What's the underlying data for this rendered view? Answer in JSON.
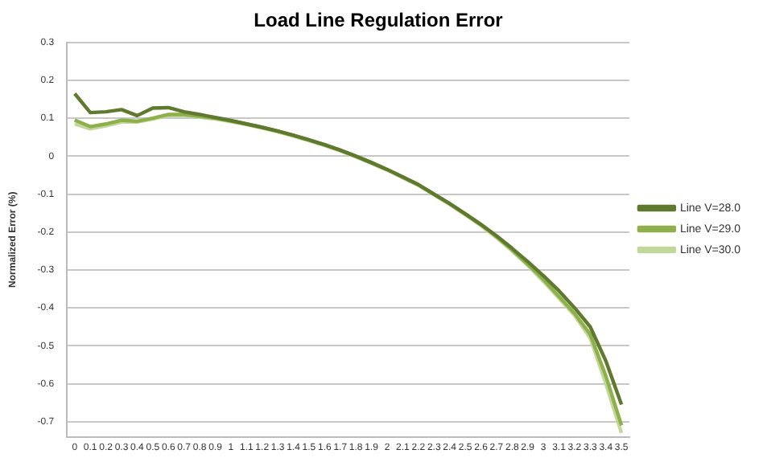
{
  "chart_data": {
    "type": "line",
    "title": "Load Line Regulation Error",
    "ylabel": "Normalized Error (%)",
    "categories": [
      "0",
      "0.1",
      "0.2",
      "0.3",
      "0.4",
      "0.5",
      "0.6",
      "0.7",
      "0.8",
      "0.9",
      "1",
      "1.1",
      "1.2",
      "1.3",
      "1.4",
      "1.5",
      "1.6",
      "1.7",
      "1.8",
      "1.9",
      "2",
      "2.1",
      "2.2",
      "2.3",
      "2.4",
      "2.5",
      "2.6",
      "2.7",
      "2.8",
      "2.9",
      "3",
      "3.1",
      "3.2",
      "3.3",
      "3.4",
      "3.5"
    ],
    "series": [
      {
        "name": "Line V=28.0",
        "color": "#5f7a2e",
        "values": [
          0.165,
          0.115,
          0.117,
          0.123,
          0.107,
          0.127,
          0.128,
          0.117,
          0.11,
          0.102,
          0.094,
          0.085,
          0.076,
          0.066,
          0.055,
          0.043,
          0.03,
          0.016,
          0.0,
          -0.017,
          -0.035,
          -0.055,
          -0.075,
          -0.1,
          -0.125,
          -0.152,
          -0.18,
          -0.21,
          -0.243,
          -0.278,
          -0.315,
          -0.355,
          -0.4,
          -0.45,
          -0.54,
          -0.655
        ]
      },
      {
        "name": "Line V=29.0",
        "color": "#8db04a",
        "values": [
          0.095,
          0.078,
          0.085,
          0.095,
          0.092,
          0.1,
          0.11,
          0.11,
          0.105,
          0.1,
          0.093,
          0.085,
          0.076,
          0.066,
          0.055,
          0.043,
          0.03,
          0.016,
          0.0,
          -0.017,
          -0.035,
          -0.055,
          -0.075,
          -0.1,
          -0.125,
          -0.152,
          -0.18,
          -0.212,
          -0.247,
          -0.285,
          -0.325,
          -0.37,
          -0.415,
          -0.47,
          -0.58,
          -0.71
        ]
      },
      {
        "name": "Line V=30.0",
        "color": "#c3d69b",
        "values": [
          0.085,
          0.072,
          0.08,
          0.09,
          0.09,
          0.098,
          0.107,
          0.108,
          0.103,
          0.098,
          0.091,
          0.083,
          0.074,
          0.064,
          0.053,
          0.041,
          0.028,
          0.014,
          -0.002,
          -0.019,
          -0.037,
          -0.057,
          -0.077,
          -0.102,
          -0.127,
          -0.155,
          -0.183,
          -0.215,
          -0.25,
          -0.288,
          -0.33,
          -0.375,
          -0.42,
          -0.48,
          -0.6,
          -0.73
        ]
      }
    ],
    "ylim": [
      -0.74,
      0.3
    ],
    "yticks": [
      0.3,
      0.2,
      0.1,
      0,
      -0.1,
      -0.2,
      -0.3,
      -0.4,
      -0.5,
      -0.6,
      -0.7
    ],
    "grid": "y",
    "legend": "right",
    "marker": "none",
    "line_style": "solid"
  }
}
